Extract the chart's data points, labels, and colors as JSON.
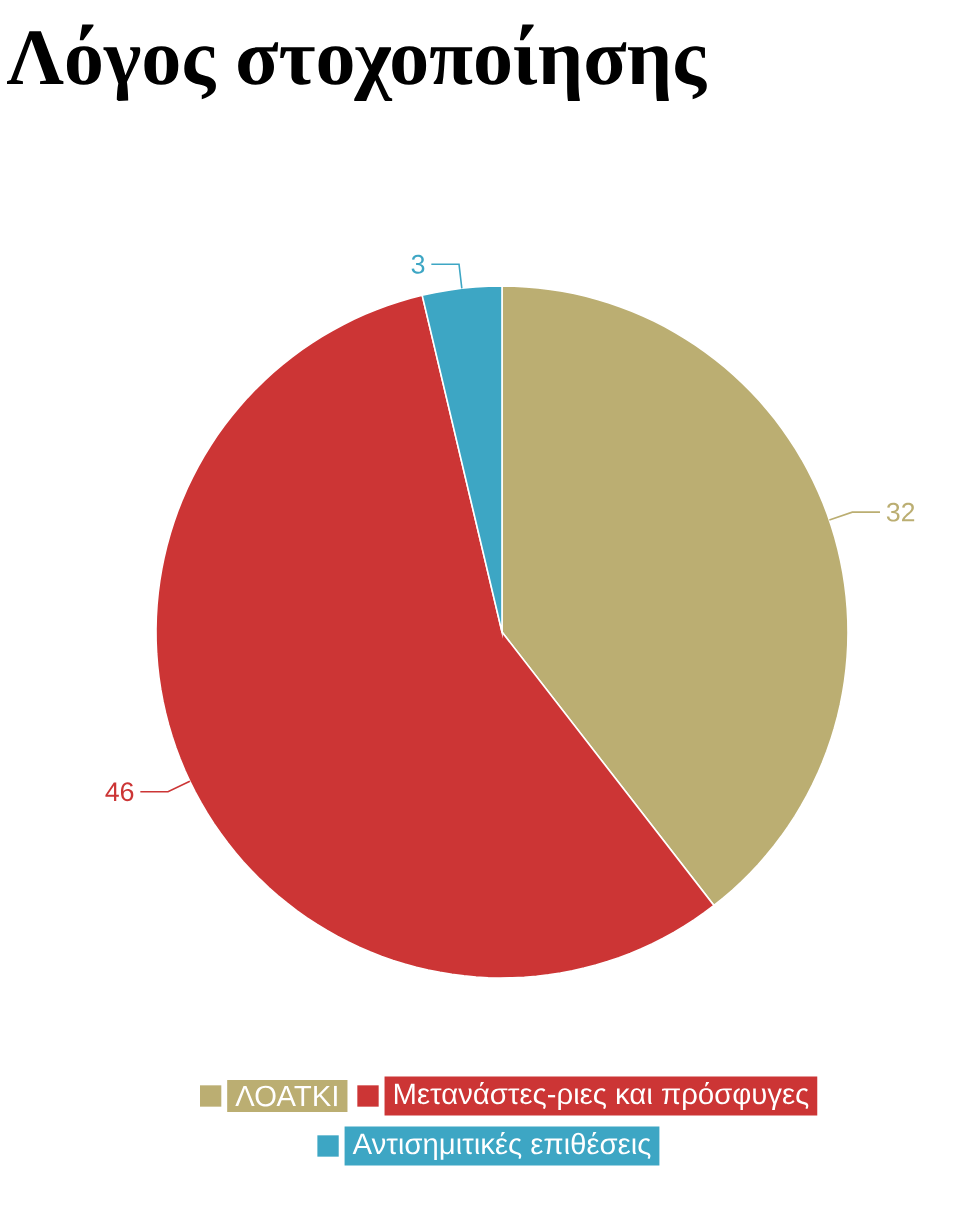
{
  "chart_data": {
    "type": "pie",
    "title": "Λόγος στοχοποίησης",
    "categories": [
      "ΛΟΑΤΚΙ",
      "Μετανάστες-ριες και πρόσφυγες",
      "Αντισημιτικές επιθέσεις"
    ],
    "values": [
      32,
      46,
      3
    ],
    "colors": [
      "#bbae72",
      "#cc3535",
      "#3da6c4"
    ],
    "data_labels": true,
    "legend": "bottom"
  }
}
